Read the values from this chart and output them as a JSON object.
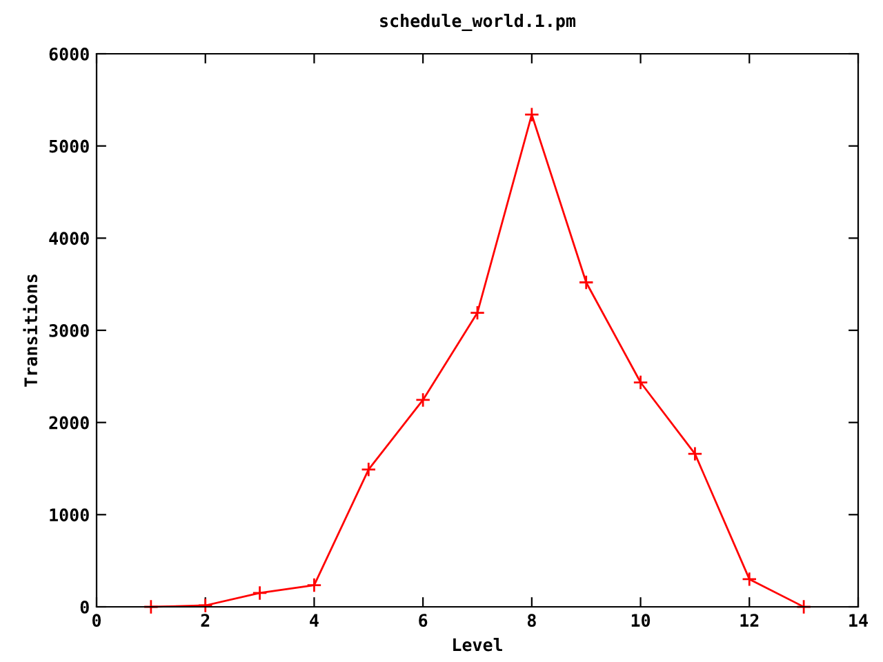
{
  "chart_data": {
    "type": "line",
    "title": "schedule_world.1.pm",
    "xlabel": "Level",
    "ylabel": "Transitions",
    "x": [
      1,
      2,
      3,
      4,
      5,
      6,
      7,
      8,
      9,
      10,
      11,
      12,
      13
    ],
    "series": [
      {
        "color": "#ff0000",
        "values": [
          0,
          15,
          150,
          235,
          1490,
          2245,
          3190,
          5340,
          3520,
          2435,
          1660,
          300,
          0
        ]
      }
    ],
    "xlim": [
      0,
      14
    ],
    "xticks": [
      0,
      2,
      4,
      6,
      8,
      10,
      12,
      14
    ],
    "ylim": [
      0,
      6000
    ],
    "yticks": [
      0,
      1000,
      2000,
      3000,
      4000,
      5000,
      6000
    ],
    "grid": false,
    "legend": false,
    "marker": "cross",
    "line_style": "solid"
  }
}
